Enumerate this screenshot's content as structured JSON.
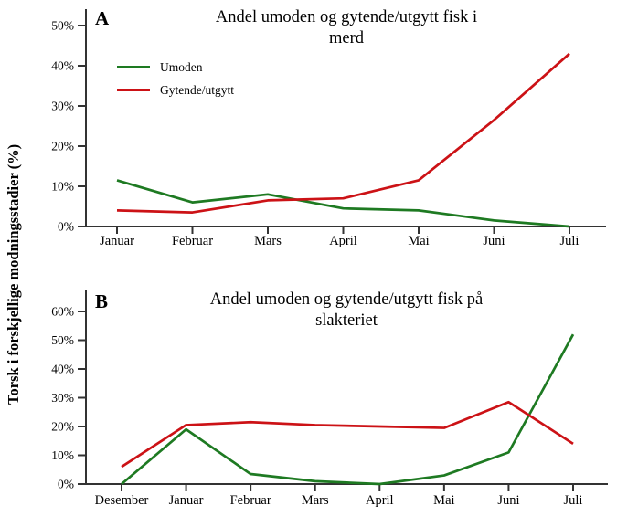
{
  "y_axis_label": "Torsk i forskjellige modningsstadier (%)",
  "colors": {
    "umoden": "#1e7a22",
    "gytende": "#cc1216",
    "axis": "#333333",
    "text": "#000000",
    "background": "#ffffff"
  },
  "legend": {
    "position": "upper-left-inside-panel-A",
    "items": [
      {
        "label": "Umoden",
        "color_key": "umoden"
      },
      {
        "label": "Gytende/utgytt",
        "color_key": "gytende"
      }
    ]
  },
  "chart_data": [
    {
      "type": "line",
      "panel_label": "A",
      "title": "Andel umoden og gytende/utgytt fisk i\nmerd",
      "categories": [
        "Januar",
        "Februar",
        "Mars",
        "April",
        "Mai",
        "Juni",
        "Juli"
      ],
      "series": [
        {
          "name": "Umoden",
          "color_key": "umoden",
          "values": [
            11.5,
            6,
            8,
            4.5,
            4,
            1.5,
            0
          ]
        },
        {
          "name": "Gytende/utgytt",
          "color_key": "gytende",
          "values": [
            4,
            3.5,
            6.5,
            7,
            11.5,
            26.5,
            43
          ]
        }
      ],
      "ylim": [
        0,
        50
      ],
      "ytick_step": 10,
      "ytick_suffix": "%",
      "grid": false,
      "legend_shown": true
    },
    {
      "type": "line",
      "panel_label": "B",
      "title": "Andel umoden og gytende/utgytt fisk på\nslakteriet",
      "categories": [
        "Desember",
        "Januar",
        "Februar",
        "Mars",
        "April",
        "Mai",
        "Juni",
        "Juli"
      ],
      "series": [
        {
          "name": "Umoden",
          "color_key": "umoden",
          "values": [
            0,
            19,
            3.5,
            1,
            0,
            3,
            11,
            52
          ]
        },
        {
          "name": "Gytende/utgytt",
          "color_key": "gytende",
          "values": [
            6,
            20.5,
            21.5,
            20.5,
            20,
            19.5,
            28.5,
            14
          ]
        }
      ],
      "ylim": [
        0,
        60
      ],
      "ytick_step": 10,
      "ytick_suffix": "%",
      "grid": false,
      "legend_shown": false
    }
  ]
}
